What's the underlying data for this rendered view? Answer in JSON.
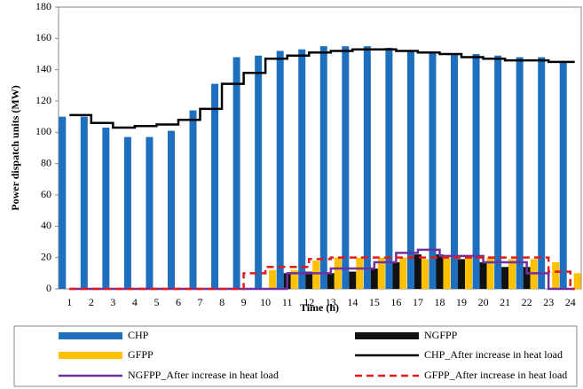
{
  "chart_data": {
    "type": "bar",
    "x_label": "Time (h)",
    "y_label": "Power dispatch units (MW)",
    "categories": [
      "1",
      "2",
      "3",
      "4",
      "5",
      "6",
      "7",
      "8",
      "9",
      "10",
      "11",
      "12",
      "13",
      "14",
      "15",
      "16",
      "17",
      "18",
      "19",
      "20",
      "21",
      "22",
      "23",
      "24"
    ],
    "ylim": [
      0,
      180
    ],
    "yticks": [
      0,
      20,
      40,
      60,
      80,
      100,
      120,
      140,
      160,
      180
    ],
    "series": [
      {
        "name": "CHP",
        "type": "bar",
        "color": "#1f6fbf",
        "values": [
          110,
          110,
          103,
          97,
          97,
          101,
          114,
          131,
          148,
          149,
          152,
          153,
          155,
          155,
          155,
          154,
          152,
          151,
          150,
          150,
          149,
          148,
          148,
          145
        ]
      },
      {
        "name": "NGFPP",
        "type": "bar",
        "color": "#111111",
        "values": [
          0,
          0,
          0,
          0,
          0,
          0,
          0,
          0,
          0,
          0,
          10,
          11,
          10,
          11,
          13,
          17,
          22,
          22,
          19,
          17,
          14,
          14,
          0,
          0
        ]
      },
      {
        "name": "GFPP",
        "type": "bar",
        "color": "#ffc000",
        "values": [
          0,
          0,
          0,
          0,
          0,
          0,
          0,
          0,
          0,
          12,
          12,
          18,
          20,
          20,
          20,
          20,
          19,
          20,
          20,
          20,
          19,
          19,
          17,
          10
        ]
      },
      {
        "name": "CHP_After increase in heat load",
        "type": "step",
        "color": "#000000",
        "dashed": false,
        "values": [
          111,
          106,
          103,
          104,
          105,
          108,
          115,
          131,
          138,
          147,
          149,
          151,
          152,
          153,
          153,
          152,
          151,
          150,
          148,
          147,
          146,
          146,
          145,
          145
        ]
      },
      {
        "name": "NGFPP_After increase in heat load",
        "type": "step",
        "color": "#7030a0",
        "dashed": false,
        "values": [
          0,
          0,
          0,
          0,
          0,
          0,
          0,
          0,
          0,
          0,
          10,
          10,
          13,
          13,
          17,
          23,
          25,
          21,
          21,
          17,
          17,
          10,
          0,
          0
        ]
      },
      {
        "name": "GFPP_After increase in heat load",
        "type": "step",
        "color": "#e31a1c",
        "dashed": true,
        "values": [
          0,
          0,
          0,
          0,
          0,
          0,
          0,
          0,
          10,
          14,
          14,
          19,
          20,
          20,
          20,
          20,
          20,
          20,
          20,
          20,
          20,
          20,
          11,
          0
        ]
      }
    ]
  }
}
